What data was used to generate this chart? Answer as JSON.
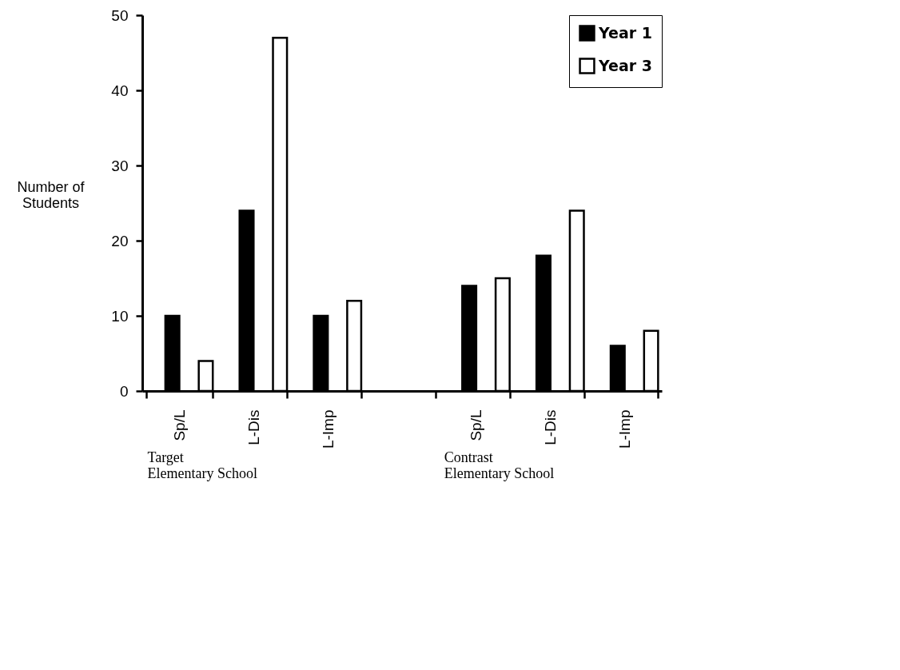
{
  "chart_data": {
    "type": "bar",
    "ylabel": "Number of\nStudents",
    "categories": [
      "Sp/L",
      "L-Dis",
      "L-Imp",
      null,
      "Sp/L",
      "L-Dis",
      "L-Imp"
    ],
    "series": [
      {
        "name": "Year 1",
        "color": "#000000",
        "values": [
          10,
          24,
          10,
          null,
          14,
          18,
          6
        ]
      },
      {
        "name": "Year 3",
        "color": "#ffffff",
        "values": [
          4,
          47,
          12,
          null,
          15,
          24,
          8
        ]
      }
    ],
    "ylim": [
      0,
      50
    ],
    "yticks": [
      0,
      10,
      20,
      30,
      40,
      50
    ],
    "grid": false,
    "legend": "top right",
    "annotations": [
      "Target\nElementary School",
      "Contrast\nElementary School"
    ]
  }
}
